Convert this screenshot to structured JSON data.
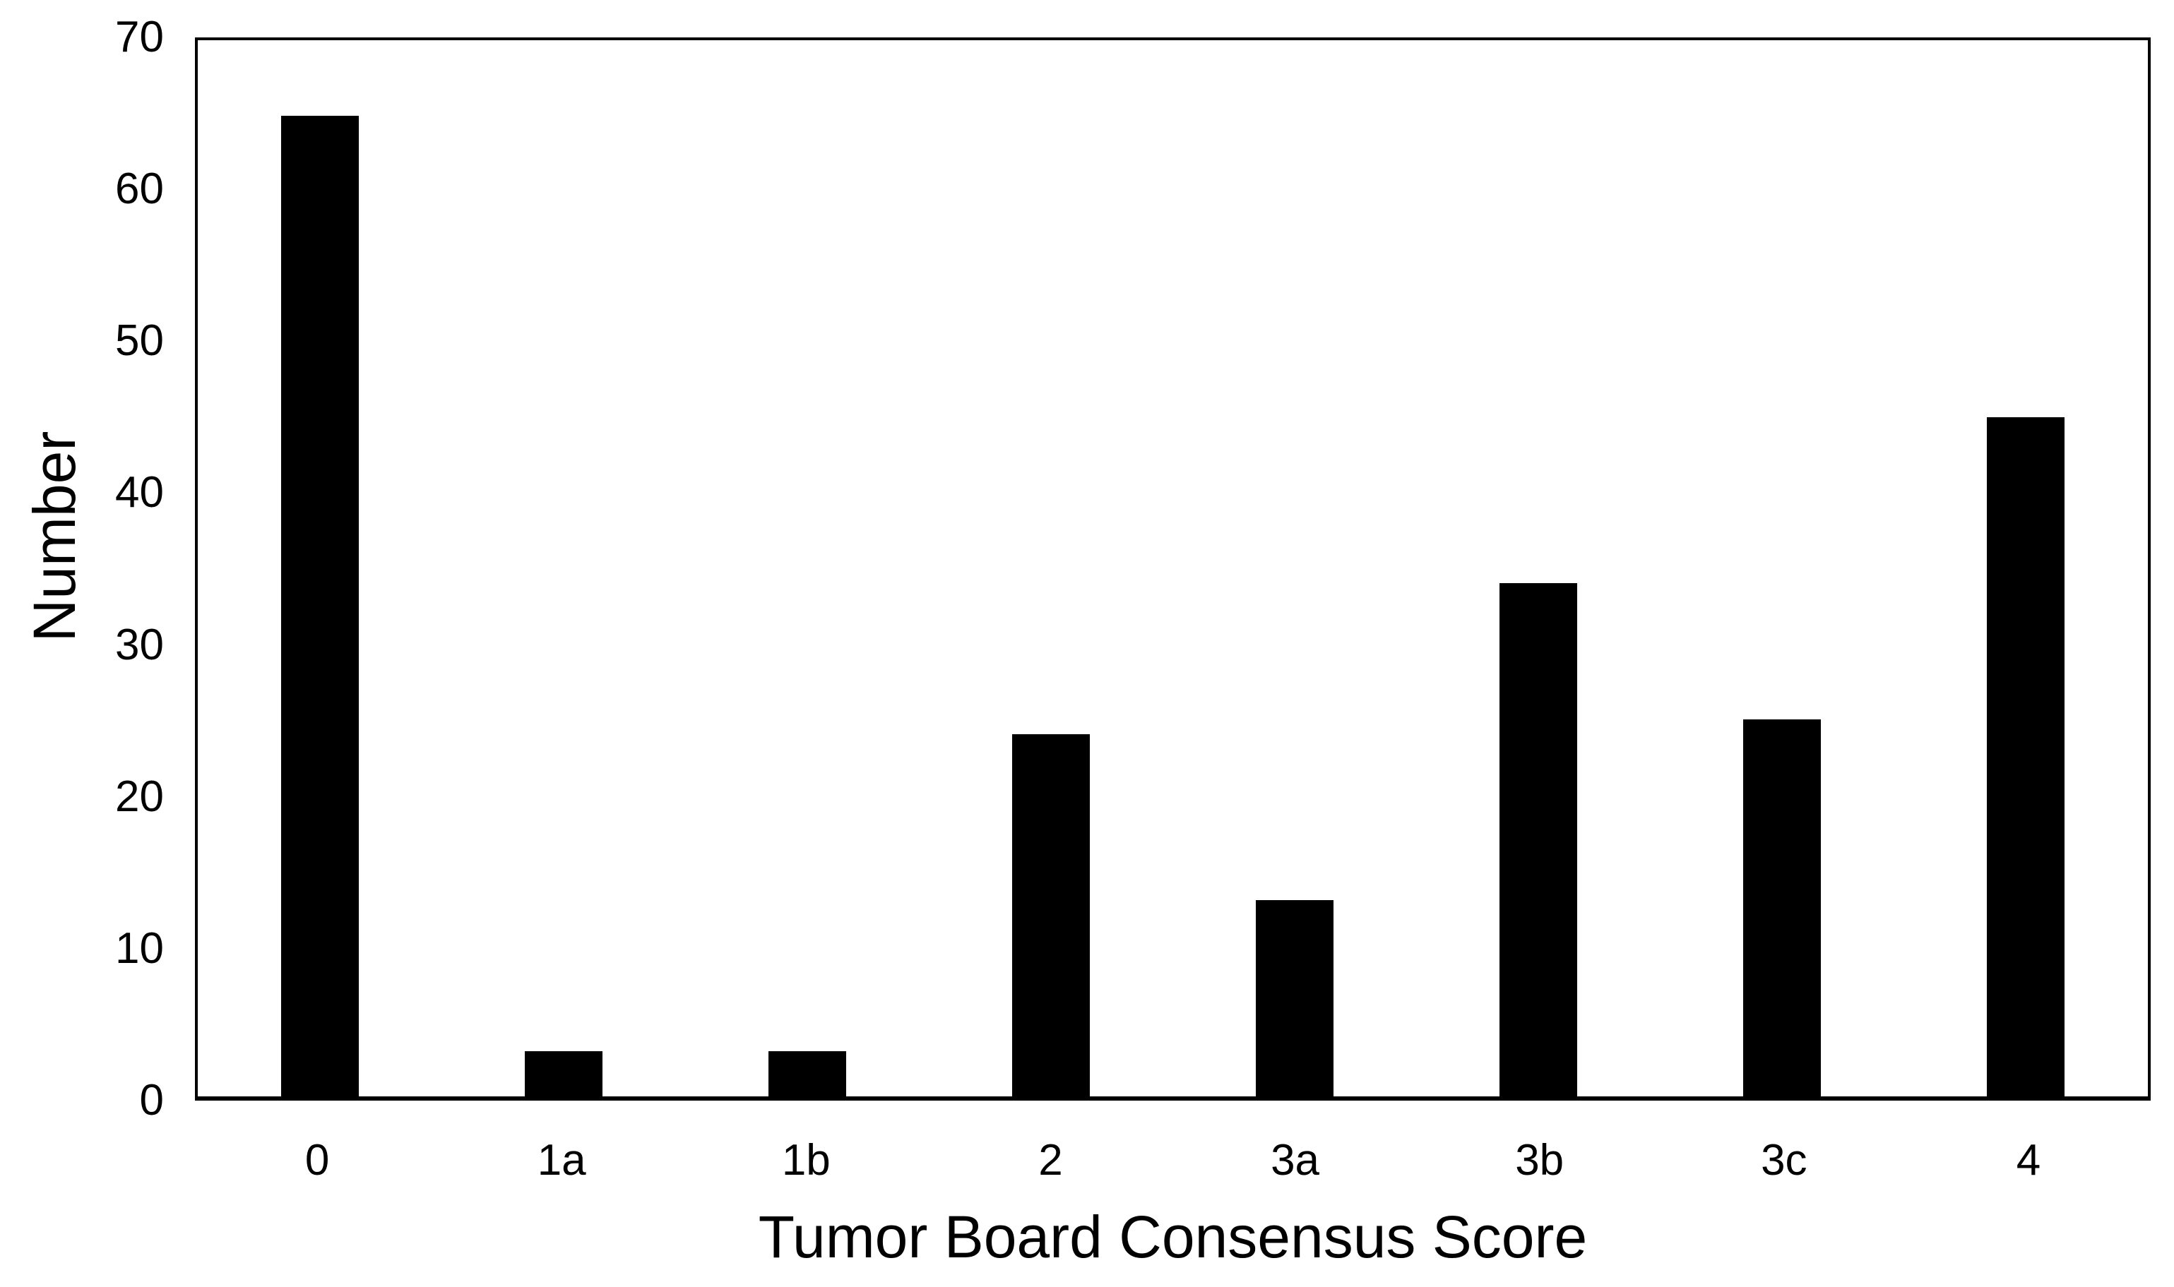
{
  "figure": {
    "background": "#ffffff"
  },
  "chart_data": {
    "type": "bar",
    "title": "",
    "categories": [
      "0",
      "1a",
      "1b",
      "2",
      "3a",
      "3b",
      "3c",
      "4"
    ],
    "values": [
      65,
      3,
      3,
      24,
      13,
      34,
      25,
      45
    ],
    "xlabel": "Tumor Board Consensus Score",
    "ylabel": "Number",
    "ylim": [
      0,
      70
    ],
    "yticks": [
      0,
      10,
      20,
      30,
      40,
      50,
      60,
      70
    ],
    "bar_color": "#000000",
    "axis_color": "#000000",
    "text_color": "#000000",
    "grid": false,
    "legend": false
  }
}
